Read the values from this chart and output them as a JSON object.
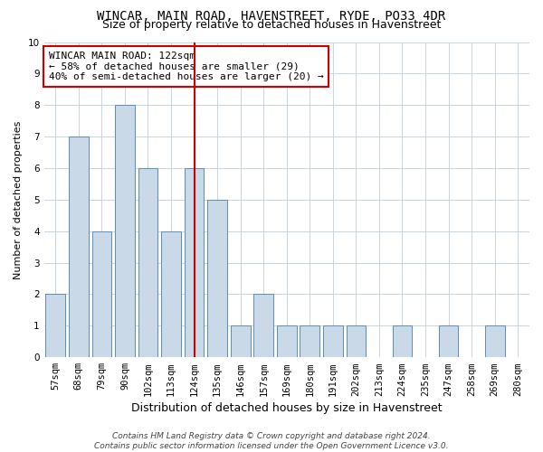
{
  "title1": "WINCAR, MAIN ROAD, HAVENSTREET, RYDE, PO33 4DR",
  "title2": "Size of property relative to detached houses in Havenstreet",
  "xlabel": "Distribution of detached houses by size in Havenstreet",
  "ylabel": "Number of detached properties",
  "categories": [
    "57sqm",
    "68sqm",
    "79sqm",
    "90sqm",
    "102sqm",
    "113sqm",
    "124sqm",
    "135sqm",
    "146sqm",
    "157sqm",
    "169sqm",
    "180sqm",
    "191sqm",
    "202sqm",
    "213sqm",
    "224sqm",
    "235sqm",
    "247sqm",
    "258sqm",
    "269sqm",
    "280sqm"
  ],
  "values": [
    2,
    7,
    4,
    8,
    6,
    4,
    6,
    5,
    1,
    2,
    1,
    1,
    1,
    1,
    0,
    1,
    0,
    1,
    0,
    1,
    0
  ],
  "bar_color": "#c9d9e8",
  "bar_edge_color": "#5b8db8",
  "highlight_index": 6,
  "highlight_line_color": "#cc0000",
  "annotation_line1": "WINCAR MAIN ROAD: 122sqm",
  "annotation_line2": "← 58% of detached houses are smaller (29)",
  "annotation_line3": "40% of semi-detached houses are larger (20) →",
  "annotation_box_color": "#cc0000",
  "ylim": [
    0,
    10
  ],
  "yticks": [
    0,
    1,
    2,
    3,
    4,
    5,
    6,
    7,
    8,
    9,
    10
  ],
  "footer1": "Contains HM Land Registry data © Crown copyright and database right 2024.",
  "footer2": "Contains public sector information licensed under the Open Government Licence v3.0.",
  "bg_color": "#ffffff",
  "grid_color": "#c8d4e0",
  "title1_fontsize": 10,
  "title2_fontsize": 9,
  "xlabel_fontsize": 9,
  "ylabel_fontsize": 8,
  "tick_fontsize": 7.5,
  "annotation_fontsize": 8,
  "footer_fontsize": 6.5
}
